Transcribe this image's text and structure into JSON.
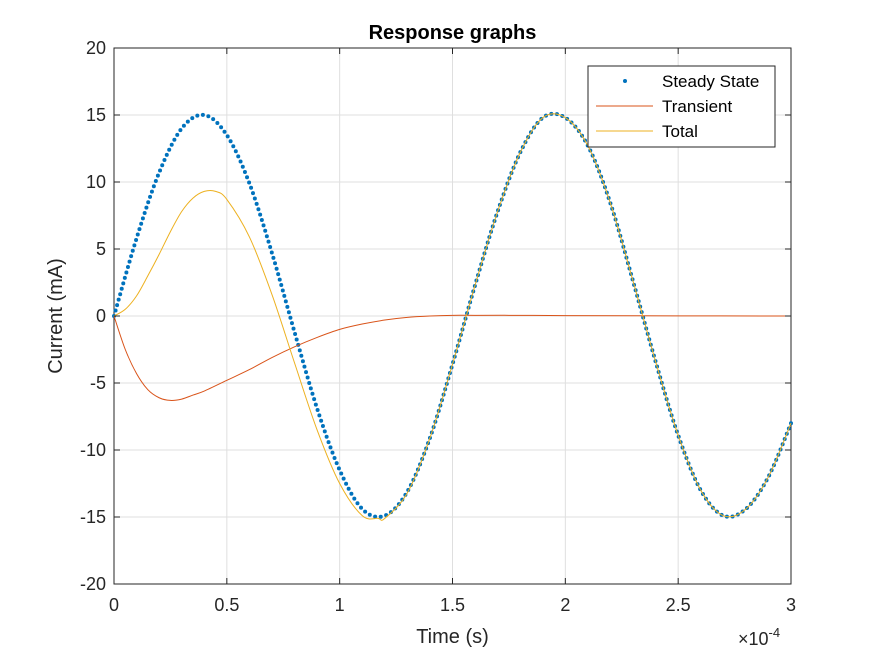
{
  "chart_data": {
    "type": "line",
    "title": "Response graphs",
    "xlabel": "Time (s)",
    "ylabel": "Current (mA)",
    "x_exponent": {
      "base": "×10",
      "power": "-4"
    },
    "xlim": [
      0,
      3
    ],
    "ylim": [
      -20,
      20
    ],
    "x_ticks": [
      0,
      0.5,
      1,
      1.5,
      2,
      2.5,
      3
    ],
    "x_tick_labels": [
      "0",
      "0.5",
      "1",
      "1.5",
      "2",
      "2.5",
      "3"
    ],
    "y_ticks": [
      -20,
      -15,
      -10,
      -5,
      0,
      5,
      10,
      15,
      20
    ],
    "y_tick_labels": [
      "-20",
      "-15",
      "-10",
      "-5",
      "0",
      "5",
      "10",
      "15",
      "20"
    ],
    "grid": true,
    "legend_position": "top-right",
    "series": [
      {
        "name": "Steady State",
        "style": "dots",
        "color": "#0072BD",
        "x": [
          0,
          0.1,
          0.2,
          0.3,
          0.4,
          0.5,
          0.6,
          0.7,
          0.8,
          0.9,
          1.0,
          1.1,
          1.2,
          1.3,
          1.4,
          1.5,
          1.6,
          1.7,
          1.8,
          1.9,
          2.0,
          2.1,
          2.2,
          2.3,
          2.4,
          2.5,
          2.6,
          2.7,
          2.8,
          2.9,
          3.0
        ],
        "values": [
          0,
          5.8,
          10.7,
          14.0,
          15.0,
          13.5,
          9.9,
          4.7,
          -1.2,
          -6.9,
          -11.5,
          -14.4,
          -14.9,
          -13.1,
          -9.1,
          -3.6,
          2.3,
          7.8,
          12.2,
          14.8,
          14.8,
          12.7,
          8.4,
          2.6,
          -3.4,
          -8.9,
          -13.0,
          -14.9,
          -14.4,
          -12.0,
          -8.0
        ]
      },
      {
        "name": "Transient",
        "style": "line",
        "color": "#D95319",
        "x": [
          0,
          0.05,
          0.1,
          0.15,
          0.2,
          0.25,
          0.3,
          0.35,
          0.4,
          0.5,
          0.6,
          0.7,
          0.8,
          0.9,
          1.0,
          1.1,
          1.2,
          1.3,
          1.4,
          1.5,
          1.6,
          1.8,
          2.0,
          2.5,
          3.0
        ],
        "values": [
          0,
          -2.5,
          -4.3,
          -5.5,
          -6.1,
          -6.3,
          -6.2,
          -5.9,
          -5.6,
          -4.8,
          -4.0,
          -3.1,
          -2.3,
          -1.6,
          -1.0,
          -0.6,
          -0.3,
          -0.1,
          0,
          0.05,
          0.05,
          0.05,
          0.03,
          0.01,
          0
        ]
      },
      {
        "name": "Total",
        "style": "line",
        "color": "#EDB120",
        "x": [
          0,
          0.05,
          0.1,
          0.15,
          0.2,
          0.25,
          0.3,
          0.35,
          0.4,
          0.45,
          0.5,
          0.6,
          0.7,
          0.8,
          0.9,
          1.0,
          1.1,
          1.17,
          1.2,
          1.3,
          1.4,
          1.5,
          1.6,
          1.7,
          1.8,
          1.9,
          2.0,
          2.1,
          2.2,
          2.3,
          2.4,
          2.5,
          2.6,
          2.7,
          2.8,
          2.9,
          3.0
        ],
        "values": [
          0,
          0.5,
          1.5,
          3.0,
          4.6,
          6.3,
          7.8,
          8.8,
          9.3,
          9.3,
          8.7,
          5.9,
          1.6,
          -3.5,
          -8.5,
          -12.5,
          -14.9,
          -15.1,
          -15.1,
          -13.2,
          -9.1,
          -3.6,
          2.3,
          7.8,
          12.2,
          14.8,
          14.8,
          12.7,
          8.4,
          2.6,
          -3.4,
          -8.9,
          -13.0,
          -14.9,
          -14.4,
          -12.0,
          -8.0
        ]
      }
    ]
  }
}
